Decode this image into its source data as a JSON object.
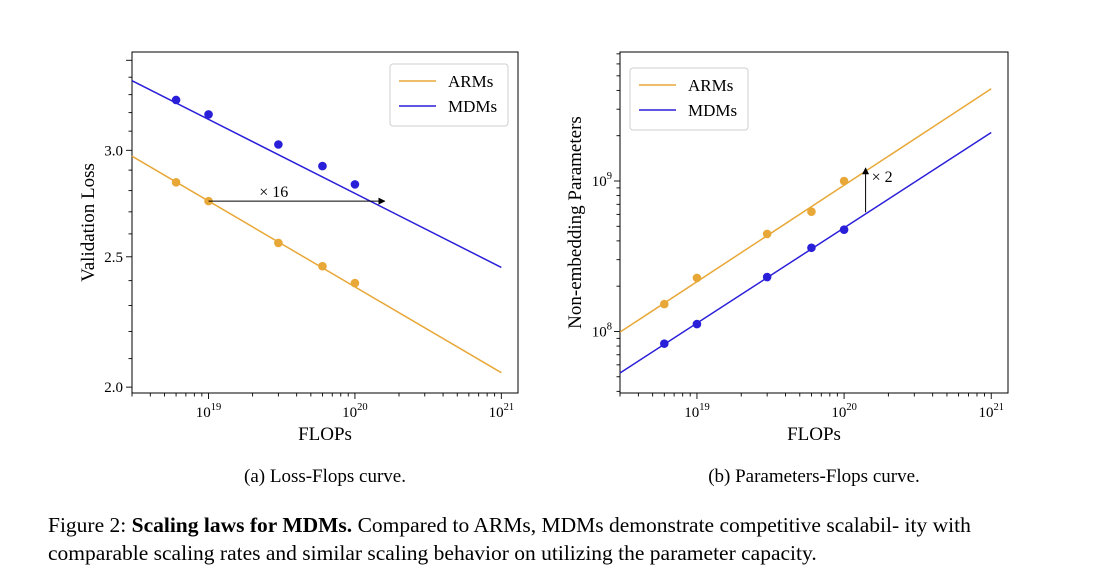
{
  "figure": {
    "label": "Figure 2:",
    "bold_title": "Scaling laws for MDMs.",
    "text": "Compared to ARMs, MDMs demonstrate competitive scalabil- ity with comparable scaling rates and similar scaling behavior on utilizing the parameter capacity."
  },
  "colors": {
    "ARMs": "#e8a838",
    "MDMs": "#2a1fd8"
  },
  "chart_data": [
    {
      "type": "line",
      "caption": "(a) Loss-Flops curve.",
      "xlabel": "FLOPs",
      "ylabel": "Validation Loss",
      "xscale": "log",
      "yscale": "log",
      "xlim": [
        3e+18,
        1.3e+21
      ],
      "ylim": [
        1.98,
        3.55
      ],
      "xticks": [
        {
          "value": 1e+19,
          "base": "10",
          "exp": "19"
        },
        {
          "value": 1e+20,
          "base": "10",
          "exp": "20"
        },
        {
          "value": 1e+21,
          "base": "10",
          "exp": "21"
        }
      ],
      "yticks": [
        {
          "value": 2.0,
          "label": "2.0"
        },
        {
          "value": 2.5,
          "label": "2.5"
        },
        {
          "value": 3.0,
          "label": "3.0"
        }
      ],
      "legend": {
        "position": "top-right",
        "entries": [
          "ARMs",
          "MDMs"
        ]
      },
      "series": [
        {
          "name": "ARMs",
          "fit": {
            "x": [
              3e+18,
              1e+21
            ],
            "y": [
              2.97,
              2.05
            ]
          },
          "points": {
            "x": [
              6e+18,
              1e+19,
              3e+19,
              6e+19,
              1e+20
            ],
            "y": [
              2.84,
              2.75,
              2.56,
              2.46,
              2.39
            ]
          }
        },
        {
          "name": "MDMs",
          "fit": {
            "x": [
              3e+18,
              1e+21
            ],
            "y": [
              3.38,
              2.455
            ]
          },
          "points": {
            "x": [
              6e+18,
              1e+19,
              3e+19,
              6e+19,
              1e+20
            ],
            "y": [
              3.27,
              3.19,
              3.03,
              2.92,
              2.83
            ]
          }
        }
      ],
      "annotation": {
        "label": "× 16",
        "type": "horizontal-arrow",
        "from": [
          1e+19,
          2.75
        ],
        "to": [
          1.6e+20,
          2.75
        ]
      }
    },
    {
      "type": "line",
      "caption": "(b) Parameters-Flops curve.",
      "xlabel": "FLOPs",
      "ylabel": "Non-embedding Parameters",
      "xscale": "log",
      "yscale": "log",
      "xlim": [
        3e+18,
        1.3e+21
      ],
      "ylim": [
        39000000.0,
        7200000000.0
      ],
      "xticks": [
        {
          "value": 1e+19,
          "base": "10",
          "exp": "19"
        },
        {
          "value": 1e+20,
          "base": "10",
          "exp": "20"
        },
        {
          "value": 1e+21,
          "base": "10",
          "exp": "21"
        }
      ],
      "yticks": [
        {
          "value": 100000000.0,
          "base": "10",
          "exp": "8"
        },
        {
          "value": 1000000000.0,
          "base": "10",
          "exp": "9"
        }
      ],
      "legend": {
        "position": "top-left",
        "entries": [
          "ARMs",
          "MDMs"
        ]
      },
      "series": [
        {
          "name": "ARMs",
          "fit": {
            "x": [
              3e+18,
              1e+21
            ],
            "y": [
              99000000.0,
              4100000000.0
            ]
          },
          "points": {
            "x": [
              6e+18,
              1e+19,
              3e+19,
              6e+19,
              1e+20
            ],
            "y": [
              152000000.0,
              227000000.0,
              445000000.0,
              625000000.0,
              1000000000.0
            ]
          }
        },
        {
          "name": "MDMs",
          "fit": {
            "x": [
              3e+18,
              1e+21
            ],
            "y": [
              53000000.0,
              2100000000.0
            ]
          },
          "points": {
            "x": [
              6e+18,
              1e+19,
              3e+19,
              6e+19,
              1e+20
            ],
            "y": [
              83000000.0,
              112000000.0,
              230000000.0,
              360000000.0,
              475000000.0
            ]
          }
        }
      ],
      "annotation": {
        "label": "× 2",
        "type": "vertical-arrow",
        "from": [
          1.4e+20,
          620000000.0
        ],
        "to": [
          1.4e+20,
          1220000000.0
        ]
      }
    }
  ]
}
